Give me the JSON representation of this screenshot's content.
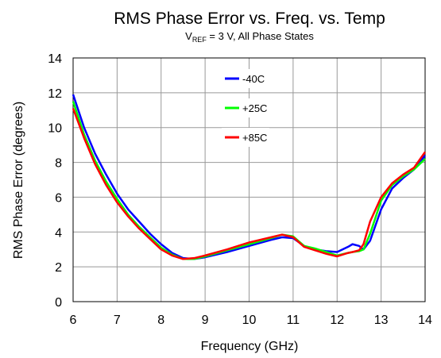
{
  "chart_data": {
    "type": "line",
    "title": "RMS Phase Error vs. Freq. vs. Temp",
    "subtitle_parts": [
      "V",
      "REF",
      " = 3 V, All Phase States"
    ],
    "x_label": "Frequency (GHz)",
    "y_label": "RMS Phase Error (degrees)",
    "x": [
      6,
      6.25,
      6.5,
      6.75,
      7,
      7.25,
      7.5,
      7.75,
      8,
      8.25,
      8.5,
      8.75,
      9,
      9.5,
      10,
      10.5,
      10.75,
      11,
      11.25,
      11.5,
      11.75,
      12,
      12.25,
      12.35,
      12.5,
      12.6,
      12.75,
      13,
      13.25,
      13.5,
      13.75,
      14
    ],
    "series": [
      {
        "name": "-40C",
        "color": "#0000ff",
        "values": [
          11.9,
          10.0,
          8.5,
          7.3,
          6.2,
          5.3,
          4.6,
          3.9,
          3.3,
          2.8,
          2.5,
          2.45,
          2.55,
          2.85,
          3.2,
          3.55,
          3.7,
          3.65,
          3.2,
          3.0,
          2.9,
          2.85,
          3.15,
          3.3,
          3.2,
          3.0,
          3.5,
          5.3,
          6.5,
          7.1,
          7.6,
          8.4
        ]
      },
      {
        "name": "+25C",
        "color": "#00ff00",
        "values": [
          11.5,
          9.6,
          8.1,
          6.9,
          5.9,
          5.0,
          4.3,
          3.7,
          3.1,
          2.7,
          2.45,
          2.45,
          2.6,
          2.95,
          3.3,
          3.65,
          3.85,
          3.75,
          3.2,
          3.05,
          2.85,
          2.65,
          2.8,
          2.85,
          2.9,
          3.0,
          3.9,
          5.8,
          6.7,
          7.2,
          7.6,
          8.2
        ]
      },
      {
        "name": "+85C",
        "color": "#ff0000",
        "values": [
          11.1,
          9.4,
          7.9,
          6.7,
          5.7,
          4.9,
          4.2,
          3.6,
          3.0,
          2.65,
          2.45,
          2.5,
          2.65,
          3.0,
          3.4,
          3.7,
          3.85,
          3.7,
          3.15,
          2.95,
          2.75,
          2.6,
          2.8,
          2.85,
          2.95,
          3.3,
          4.6,
          6.0,
          6.8,
          7.3,
          7.7,
          8.6
        ]
      }
    ],
    "xlim": [
      6,
      14
    ],
    "xticks": [
      6,
      7,
      8,
      9,
      10,
      11,
      12,
      13,
      14
    ],
    "ylim": [
      0,
      14
    ],
    "yticks": [
      0,
      2,
      4,
      6,
      8,
      10,
      12,
      14
    ],
    "grid": true,
    "legend": "upper center"
  }
}
